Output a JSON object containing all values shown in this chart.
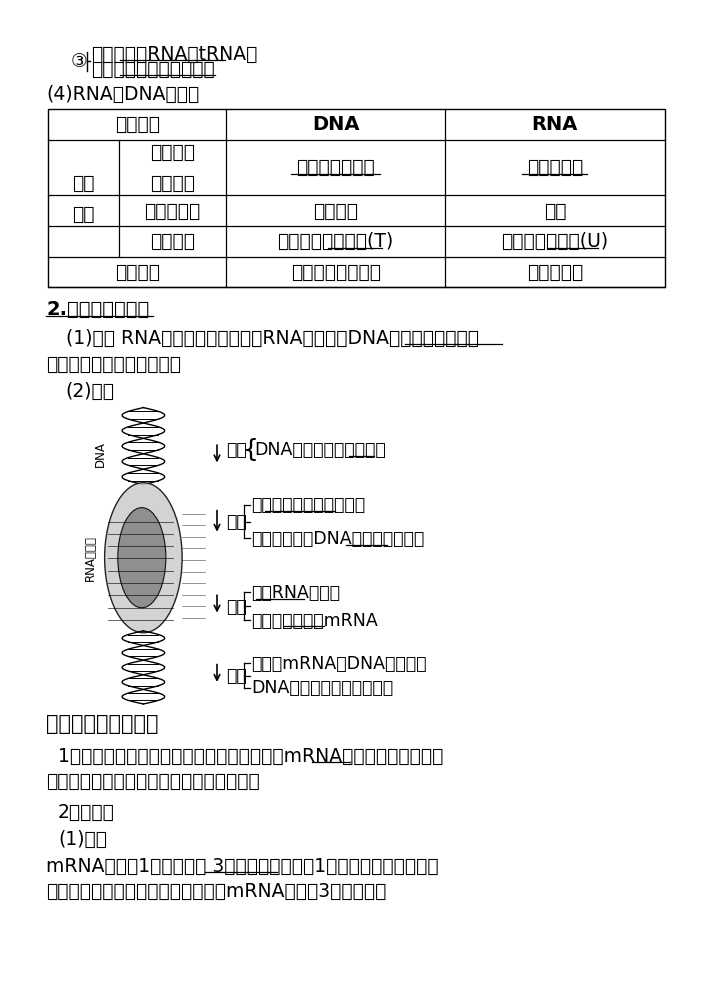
{
  "bg_color": "#ffffff",
  "section3_circle": "③",
  "section3_line1": "名称：转运RNA（tRNA）",
  "section3_line2": "作用：识别并转运氨基酸",
  "section4_header": "(4)RNA与DNA的比较",
  "table_header_col0": "比较项目",
  "table_header_col1": "DNA",
  "table_header_col2": "RNA",
  "row_merge_label": "组成\n单位",
  "row1_inner": "基本组成\n单位不同",
  "row1_dna": "脱氧核糖核苷酸",
  "row1_rna": "核糖核苷酸",
  "row2_inner": "五碳糖不同",
  "row2_dna": "脱氧核糖",
  "row2_rna": "核糖",
  "row3_inner": "碱基不同",
  "row3_dna": "特有的是胸腺嘧啶(T)",
  "row3_rna": "特有的是尿嘧啶(U)",
  "row4_label": "结构不同",
  "row4_dna": "规则的双螺旋结构",
  "row4_rna": "一般为单链",
  "sec2_header": "2.遗传信息的转录",
  "concept1_line1": "(1)概念 RNA是在细胞核中，通过RNA聚合酶以DNA的一条链为模板合",
  "concept1_line2": "成的，这一过程叫作转录。",
  "process_header": "(2)过程",
  "jiexuan_label": "解旋",
  "jiexuan_brace": "{ ",
  "jiexuan_text": "DNA双链解开，暴露碱基",
  "peidui_label": "配对",
  "peidui_text1": "原则：碱基互补配对原则",
  "peidui_text2": "模板：解开的DNA双链中的一条链",
  "lianjie_label": "连接",
  "lianjie_text1": "酶：RNA聚合酶",
  "lianjie_text2": "结果：形成一个mRNA",
  "shifang_label": "释放",
  "shifang_text1": "合成的mRNA从DNA链上释放",
  "shifang_text2": "DNA双链恢复成双螺旋结构",
  "sec_yi_header": "二、遗传信息的翻译",
  "concept2_line1": "1．概念：游离在细胞质中的各种氨基酸，以mRNA为模板合成具有一定",
  "concept2_line2": "氨基酸顺序的蛋白质，这一过程叫作翻译。",
  "mima_header": "2．密码子",
  "gaishu_header": "(1)概念",
  "mima_def1": "mRNA上决定1个氨基酸的 3个相邻的碱基叫作1个密码子。密码子的碱",
  "mima_def2": "基是连续的，没有间隔，图中表示的mRNA上含有3个密码子。"
}
